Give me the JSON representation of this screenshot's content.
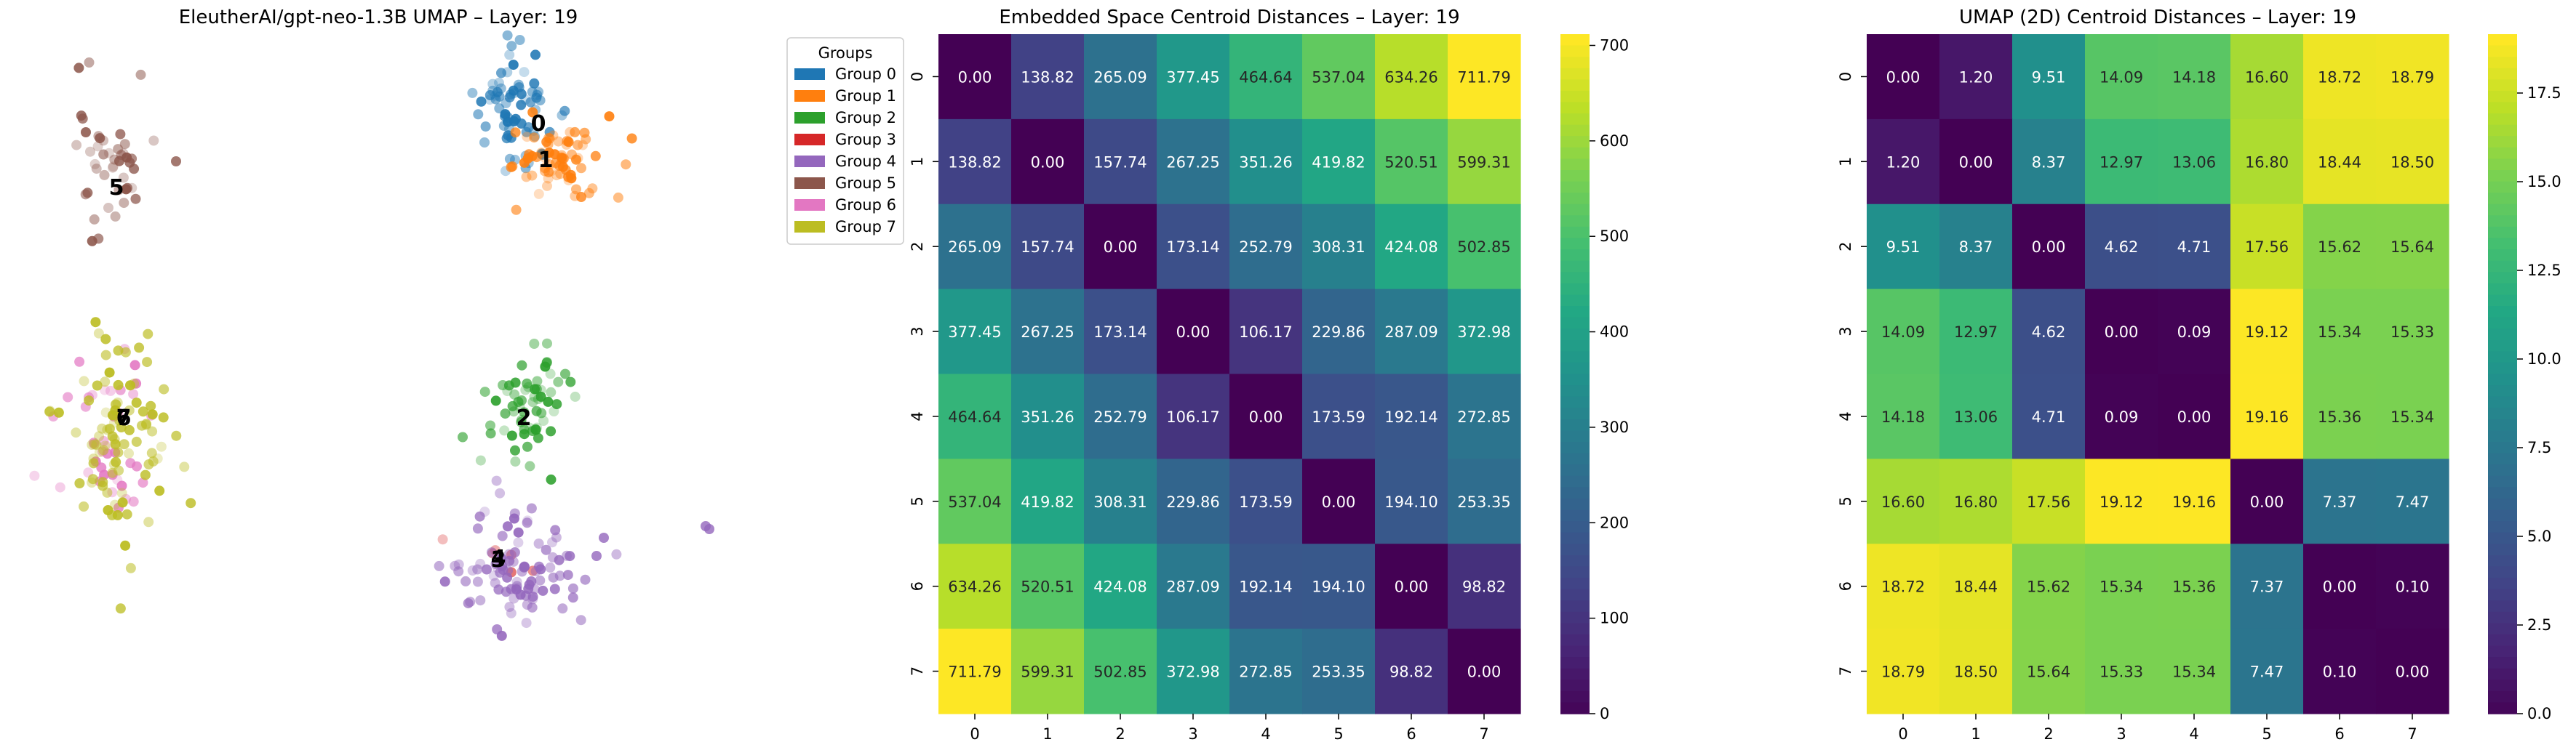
{
  "chart_data": [
    {
      "type": "scatter",
      "title": "EleutherAI/gpt-neo-1.3B UMAP – Layer: 19",
      "xlabel": "",
      "ylabel": "",
      "axes_visible": false,
      "legend": {
        "title": "Groups",
        "placement": "right",
        "entries": [
          "Group 0",
          "Group 1",
          "Group 2",
          "Group 3",
          "Group 4",
          "Group 5",
          "Group 6",
          "Group 7"
        ]
      },
      "series": [
        {
          "name": "Group 0",
          "color": "#1f77b4"
        },
        {
          "name": "Group 1",
          "color": "#ff7f0e"
        },
        {
          "name": "Group 2",
          "color": "#2ca02c"
        },
        {
          "name": "Group 3",
          "color": "#d62728"
        },
        {
          "name": "Group 4",
          "color": "#9467bd"
        },
        {
          "name": "Group 5",
          "color": "#8c564b"
        },
        {
          "name": "Group 6",
          "color": "#e377c2"
        },
        {
          "name": "Group 7",
          "color": "#bcbd22"
        }
      ],
      "centroid_labels": [
        "0",
        "1",
        "2",
        "3",
        "4",
        "5",
        "6",
        "7"
      ]
    },
    {
      "type": "heatmap",
      "title": "Embedded Space Centroid Distances – Layer: 19",
      "x_categories": [
        "0",
        "1",
        "2",
        "3",
        "4",
        "5",
        "6",
        "7"
      ],
      "y_categories": [
        "0",
        "1",
        "2",
        "3",
        "4",
        "5",
        "6",
        "7"
      ],
      "colormap": "viridis",
      "vmin": 0,
      "vmax": 711.79,
      "colorbar_ticks": [
        0,
        100,
        200,
        300,
        400,
        500,
        600,
        700
      ],
      "colorbar_labels": [
        "0",
        "100",
        "200",
        "300",
        "400",
        "500",
        "600",
        "700"
      ],
      "matrix": [
        [
          0.0,
          138.82,
          265.09,
          377.45,
          464.64,
          537.04,
          634.26,
          711.79
        ],
        [
          138.82,
          0.0,
          157.74,
          267.25,
          351.26,
          419.82,
          520.51,
          599.31
        ],
        [
          265.09,
          157.74,
          0.0,
          173.14,
          252.79,
          308.31,
          424.08,
          502.85
        ],
        [
          377.45,
          267.25,
          173.14,
          0.0,
          106.17,
          229.86,
          287.09,
          372.98
        ],
        [
          464.64,
          351.26,
          252.79,
          106.17,
          0.0,
          173.59,
          192.14,
          272.85
        ],
        [
          537.04,
          419.82,
          308.31,
          229.86,
          173.59,
          0.0,
          194.1,
          253.35
        ],
        [
          634.26,
          520.51,
          424.08,
          287.09,
          192.14,
          194.1,
          0.0,
          98.82
        ],
        [
          711.79,
          599.31,
          502.85,
          372.98,
          272.85,
          253.35,
          98.82,
          0.0
        ]
      ],
      "cell_labels": [
        [
          "0.00",
          "138.82",
          "265.09",
          "377.45",
          "464.64",
          "537.04",
          "634.26",
          "711.79"
        ],
        [
          "138.82",
          "0.00",
          "157.74",
          "267.25",
          "351.26",
          "419.82",
          "520.51",
          "599.31"
        ],
        [
          "265.09",
          "157.74",
          "0.00",
          "173.14",
          "252.79",
          "308.31",
          "424.08",
          "502.85"
        ],
        [
          "377.45",
          "267.25",
          "173.14",
          "0.00",
          "106.17",
          "229.86",
          "287.09",
          "372.98"
        ],
        [
          "464.64",
          "351.26",
          "252.79",
          "106.17",
          "0.00",
          "173.59",
          "192.14",
          "272.85"
        ],
        [
          "537.04",
          "419.82",
          "308.31",
          "229.86",
          "173.59",
          "0.00",
          "194.10",
          "253.35"
        ],
        [
          "634.26",
          "520.51",
          "424.08",
          "287.09",
          "192.14",
          "194.10",
          "0.00",
          "98.82"
        ],
        [
          "711.79",
          "599.31",
          "502.85",
          "372.98",
          "272.85",
          "253.35",
          "98.82",
          "0.00"
        ]
      ]
    },
    {
      "type": "heatmap",
      "title": "UMAP (2D) Centroid Distances – Layer: 19",
      "x_categories": [
        "0",
        "1",
        "2",
        "3",
        "4",
        "5",
        "6",
        "7"
      ],
      "y_categories": [
        "0",
        "1",
        "2",
        "3",
        "4",
        "5",
        "6",
        "7"
      ],
      "colormap": "viridis",
      "vmin": 0,
      "vmax": 19.16,
      "colorbar_ticks": [
        0,
        2.5,
        5,
        7.5,
        10,
        12.5,
        15,
        17.5
      ],
      "colorbar_labels": [
        "0.0",
        "2.5",
        "5.0",
        "7.5",
        "10.0",
        "12.5",
        "15.0",
        "17.5"
      ],
      "matrix": [
        [
          0.0,
          1.2,
          9.51,
          14.09,
          14.18,
          16.6,
          18.72,
          18.79
        ],
        [
          1.2,
          0.0,
          8.37,
          12.97,
          13.06,
          16.8,
          18.44,
          18.5
        ],
        [
          9.51,
          8.37,
          0.0,
          4.62,
          4.71,
          17.56,
          15.62,
          15.64
        ],
        [
          14.09,
          12.97,
          4.62,
          0.0,
          0.09,
          19.12,
          15.34,
          15.33
        ],
        [
          14.18,
          13.06,
          4.71,
          0.09,
          0.0,
          19.16,
          15.36,
          15.34
        ],
        [
          16.6,
          16.8,
          17.56,
          19.12,
          19.16,
          0.0,
          7.37,
          7.47
        ],
        [
          18.72,
          18.44,
          15.62,
          15.34,
          15.36,
          7.37,
          0.0,
          0.1
        ],
        [
          18.79,
          18.5,
          15.64,
          15.33,
          15.34,
          7.47,
          0.1,
          0.0
        ]
      ],
      "cell_labels": [
        [
          "0.00",
          "1.20",
          "9.51",
          "14.09",
          "14.18",
          "16.60",
          "18.72",
          "18.79"
        ],
        [
          "1.20",
          "0.00",
          "8.37",
          "12.97",
          "13.06",
          "16.80",
          "18.44",
          "18.50"
        ],
        [
          "9.51",
          "8.37",
          "0.00",
          "4.62",
          "4.71",
          "17.56",
          "15.62",
          "15.64"
        ],
        [
          "14.09",
          "12.97",
          "4.62",
          "0.00",
          "0.09",
          "19.12",
          "15.34",
          "15.33"
        ],
        [
          "14.18",
          "13.06",
          "4.71",
          "0.09",
          "0.00",
          "19.16",
          "15.36",
          "15.34"
        ],
        [
          "16.60",
          "16.80",
          "17.56",
          "19.12",
          "19.16",
          "0.00",
          "7.37",
          "7.47"
        ],
        [
          "18.72",
          "18.44",
          "15.62",
          "15.34",
          "15.36",
          "7.37",
          "0.00",
          "0.10"
        ],
        [
          "18.79",
          "18.50",
          "15.64",
          "15.33",
          "15.34",
          "7.47",
          "0.10",
          "0.00"
        ]
      ]
    }
  ]
}
